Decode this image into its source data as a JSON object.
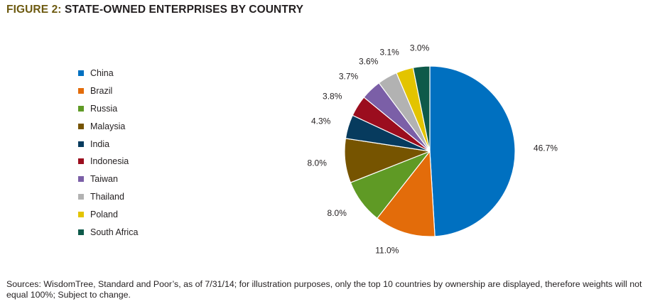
{
  "figure": {
    "number": "FIGURE 2:",
    "title": "STATE-OWNED ENTERPRISES BY COUNTRY"
  },
  "colors": {
    "title_accent": "#6d5a10"
  },
  "chart_data": {
    "type": "pie",
    "title": "",
    "legend_position": "left",
    "categories": [
      "China",
      "Brazil",
      "Russia",
      "Malaysia",
      "India",
      "Indonesia",
      "Taiwan",
      "Thailand",
      "Poland",
      "South Africa"
    ],
    "values": [
      46.7,
      11.0,
      8.0,
      8.0,
      4.3,
      3.8,
      3.7,
      3.6,
      3.1,
      3.0
    ],
    "value_labels": [
      "46.7%",
      "11.0%",
      "8.0%",
      "8.0%",
      "4.3%",
      "3.8%",
      "3.7%",
      "3.6%",
      "3.1%",
      "3.0%"
    ],
    "colors": [
      "#0070c0",
      "#e36c0a",
      "#5f9a25",
      "#765400",
      "#073b5e",
      "#9b0d1e",
      "#7b5fa7",
      "#b2b2b2",
      "#e3c400",
      "#0e5a4a"
    ]
  },
  "footer": {
    "sources": "Sources: WisdomTree, Standard and Poor’s, as of 7/31/14; for illustration purposes, only the top 10 countries by ownership are displayed, therefore weights will not equal 100%; Subject to change."
  }
}
